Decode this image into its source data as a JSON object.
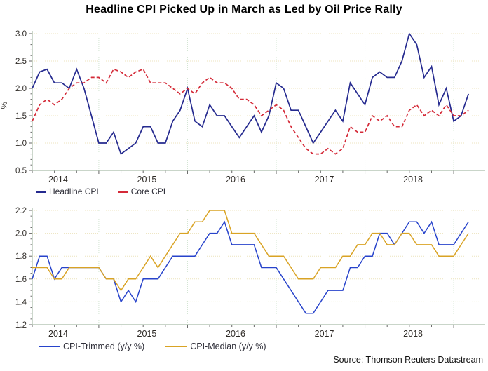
{
  "title": "Headline CPI Picked Up in March as Led by Oil Price Rally",
  "source": "Source: Thomson Reuters Datastream",
  "colors": {
    "headline_cpi": "#252a8f",
    "core_cpi": "#d42a38",
    "cpi_trimmed": "#2743cb",
    "cpi_median": "#d9a324",
    "grid_horizontal": "#ece3bc",
    "grid_vertical": "#d2e4d2",
    "axis_line": "#a9bca9",
    "tick_mark": "#666666",
    "tick_label": "#2e2a26"
  },
  "chart_data": [
    {
      "type": "line",
      "title": "",
      "ylabel": "%",
      "xlabel": "",
      "ylim": [
        0.5,
        3.0
      ],
      "yticks": [
        0.5,
        1.0,
        1.5,
        2.0,
        2.5,
        3.0
      ],
      "xticklabels": [
        "2014",
        "2015",
        "2016",
        "2017",
        "2018"
      ],
      "x_first": "2014-04",
      "x_last": "2019-03",
      "x_frequency": "monthly",
      "grid": true,
      "legend_position": "below-left",
      "series": [
        {
          "name": "Headline CPI",
          "color": "#252a8f",
          "dash": "solid",
          "values": [
            2.0,
            2.3,
            2.35,
            2.1,
            2.1,
            2.0,
            2.35,
            2.0,
            1.5,
            1.0,
            1.0,
            1.2,
            0.8,
            0.9,
            1.0,
            1.3,
            1.3,
            1.0,
            1.0,
            1.4,
            1.6,
            2.0,
            1.4,
            1.3,
            1.7,
            1.5,
            1.5,
            1.3,
            1.1,
            1.3,
            1.5,
            1.2,
            1.5,
            2.1,
            2.0,
            1.6,
            1.6,
            1.3,
            1.0,
            1.2,
            1.4,
            1.6,
            1.4,
            2.1,
            1.9,
            1.7,
            2.2,
            2.3,
            2.2,
            2.2,
            2.5,
            3.0,
            2.8,
            2.2,
            2.4,
            1.7,
            2.0,
            1.4,
            1.5,
            1.9
          ]
        },
        {
          "name": "Core CPI",
          "color": "#d42a38",
          "dash": "dashed",
          "values": [
            1.4,
            1.7,
            1.8,
            1.7,
            1.8,
            2.0,
            2.1,
            2.1,
            2.2,
            2.2,
            2.1,
            2.35,
            2.3,
            2.2,
            2.3,
            2.35,
            2.1,
            2.1,
            2.1,
            2.0,
            1.9,
            2.0,
            1.9,
            2.1,
            2.2,
            2.1,
            2.1,
            2.0,
            1.8,
            1.8,
            1.7,
            1.5,
            1.6,
            1.7,
            1.6,
            1.3,
            1.1,
            0.9,
            0.8,
            0.8,
            0.9,
            0.8,
            0.9,
            1.3,
            1.2,
            1.2,
            1.5,
            1.4,
            1.5,
            1.3,
            1.3,
            1.6,
            1.7,
            1.5,
            1.6,
            1.5,
            1.7,
            1.5,
            1.5,
            1.6
          ]
        }
      ]
    },
    {
      "type": "line",
      "title": "",
      "ylabel": "",
      "xlabel": "",
      "ylim": [
        1.2,
        2.2
      ],
      "yticks": [
        1.2,
        1.4,
        1.6,
        1.8,
        2.0,
        2.2
      ],
      "xticklabels": [
        "2014",
        "2015",
        "2016",
        "2017",
        "2018"
      ],
      "x_first": "2014-04",
      "x_last": "2019-03",
      "x_frequency": "monthly",
      "grid": true,
      "legend_position": "below-left",
      "series": [
        {
          "name": "CPI-Trimmed (y/y %)",
          "color": "#2743cb",
          "dash": "solid",
          "values": [
            1.6,
            1.8,
            1.8,
            1.6,
            1.7,
            1.7,
            1.7,
            1.7,
            1.7,
            1.7,
            1.6,
            1.6,
            1.4,
            1.5,
            1.4,
            1.6,
            1.6,
            1.6,
            1.7,
            1.8,
            1.8,
            1.8,
            1.8,
            1.9,
            2.0,
            2.0,
            2.1,
            1.9,
            1.9,
            1.9,
            1.9,
            1.7,
            1.7,
            1.7,
            1.6,
            1.5,
            1.4,
            1.3,
            1.3,
            1.4,
            1.5,
            1.5,
            1.5,
            1.7,
            1.7,
            1.8,
            1.8,
            2.0,
            2.0,
            1.9,
            2.0,
            2.1,
            2.1,
            2.0,
            2.1,
            1.9,
            1.9,
            1.9,
            2.0,
            2.1
          ]
        },
        {
          "name": "CPI-Median (y/y %)",
          "color": "#d9a324",
          "dash": "solid",
          "values": [
            1.7,
            1.7,
            1.7,
            1.6,
            1.6,
            1.7,
            1.7,
            1.7,
            1.7,
            1.7,
            1.6,
            1.6,
            1.5,
            1.6,
            1.6,
            1.7,
            1.8,
            1.7,
            1.8,
            1.9,
            2.0,
            2.0,
            2.1,
            2.1,
            2.2,
            2.2,
            2.2,
            2.0,
            2.0,
            2.0,
            2.0,
            1.9,
            1.8,
            1.8,
            1.8,
            1.7,
            1.6,
            1.6,
            1.6,
            1.7,
            1.7,
            1.7,
            1.8,
            1.8,
            1.9,
            1.9,
            2.0,
            2.0,
            1.9,
            1.9,
            2.0,
            2.0,
            1.9,
            1.9,
            1.9,
            1.8,
            1.8,
            1.8,
            1.9,
            2.0
          ]
        }
      ]
    }
  ]
}
